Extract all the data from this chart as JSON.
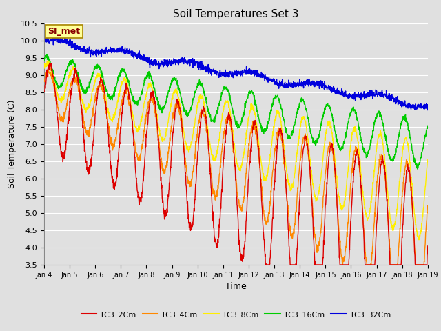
{
  "title": "Soil Temperatures Set 3",
  "xlabel": "Time",
  "ylabel": "Soil Temperature (C)",
  "ylim": [
    3.5,
    10.5
  ],
  "xlim": [
    0,
    15
  ],
  "yticks": [
    3.5,
    4.0,
    4.5,
    5.0,
    5.5,
    6.0,
    6.5,
    7.0,
    7.5,
    8.0,
    8.5,
    9.0,
    9.5,
    10.0,
    10.5
  ],
  "xtick_labels": [
    "Jan 4",
    "Jan 5",
    "Jan 6",
    "Jan 7",
    "Jan 8",
    "Jan 9",
    "Jan 10",
    "Jan 11",
    "Jan 12",
    "Jan 13",
    "Jan 14",
    "Jan 15",
    "Jan 16",
    "Jan 17",
    "Jan 18",
    "Jan 19"
  ],
  "background_color": "#e0e0e0",
  "plot_bg_color": "#e0e0e0",
  "grid_color": "#ffffff",
  "colors": {
    "TC3_2Cm": "#dd0000",
    "TC3_4Cm": "#ff8800",
    "TC3_8Cm": "#ffee00",
    "TC3_16Cm": "#00cc00",
    "TC3_32Cm": "#0000dd"
  },
  "legend_label": "SI_met",
  "legend_bg": "#ffff99",
  "legend_border": "#aa8800"
}
